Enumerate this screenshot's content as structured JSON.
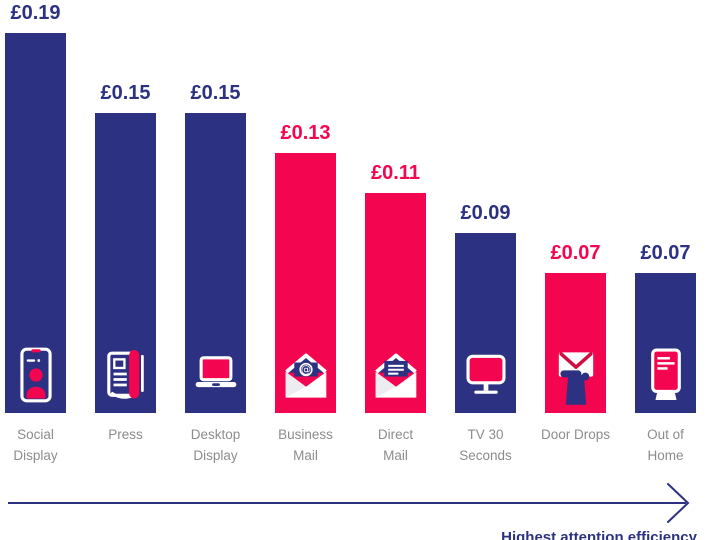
{
  "chart_data": {
    "type": "bar",
    "title": "",
    "categories": [
      "Social Display",
      "Press",
      "Desktop Display",
      "Business Mail",
      "Direct Mail",
      "TV 30 Seconds",
      "Door Drops",
      "Out of Home"
    ],
    "values": [
      0.19,
      0.15,
      0.15,
      0.13,
      0.11,
      0.09,
      0.07,
      0.07
    ],
    "value_labels": [
      "£0.19",
      "£0.15",
      "£0.15",
      "£0.13",
      "£0.11",
      "£0.09",
      "£0.07",
      "£0.07"
    ],
    "currency_symbol": "£",
    "ylim": [
      0,
      0.2
    ],
    "grid": false,
    "legend": false,
    "bars": [
      {
        "category": "Social Display",
        "category_lines": [
          "Social",
          "Display"
        ],
        "value": 0.19,
        "value_label": "£0.19",
        "color_key": "navy",
        "icon": "smartphone-person-icon"
      },
      {
        "category": "Press",
        "category_lines": [
          "Press"
        ],
        "value": 0.15,
        "value_label": "£0.15",
        "color_key": "navy",
        "icon": "newspaper-icon"
      },
      {
        "category": "Desktop Display",
        "category_lines": [
          "Desktop",
          "Display"
        ],
        "value": 0.15,
        "value_label": "£0.15",
        "color_key": "navy",
        "icon": "laptop-icon"
      },
      {
        "category": "Business Mail",
        "category_lines": [
          "Business",
          "Mail"
        ],
        "value": 0.13,
        "value_label": "£0.13",
        "color_key": "pink",
        "icon": "envelope-at-icon"
      },
      {
        "category": "Direct Mail",
        "category_lines": [
          "Direct",
          "Mail"
        ],
        "value": 0.11,
        "value_label": "£0.11",
        "color_key": "pink",
        "icon": "envelope-letter-icon"
      },
      {
        "category": "TV 30 Seconds",
        "category_lines": [
          "TV 30",
          "Seconds"
        ],
        "value": 0.09,
        "value_label": "£0.09",
        "color_key": "navy",
        "icon": "tv-icon"
      },
      {
        "category": "Door Drops",
        "category_lines": [
          "Door Drops"
        ],
        "value": 0.07,
        "value_label": "£0.07",
        "color_key": "pink",
        "icon": "hand-envelope-icon"
      },
      {
        "category": "Out of Home",
        "category_lines": [
          "Out of",
          "Home"
        ],
        "value": 0.07,
        "value_label": "£0.07",
        "color_key": "navy",
        "icon": "billboard-kiosk-icon"
      }
    ],
    "x_axis": {
      "arrow_direction": "right",
      "caption": "Highest attention efficiency"
    }
  },
  "colors": {
    "navy": "#2C3182",
    "pink": "#F4054F",
    "flap_red": "#CF0D3E",
    "label_gray": "#8C8C8C",
    "background": "#FFFFFF"
  }
}
